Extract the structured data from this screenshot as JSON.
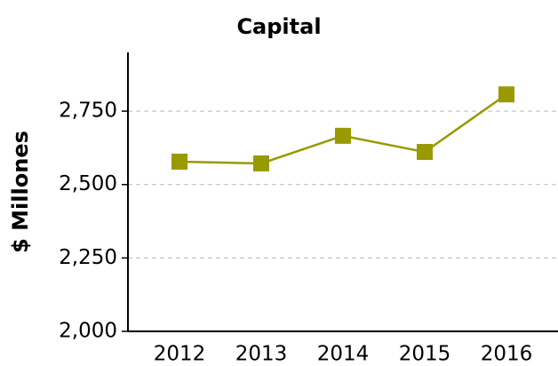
{
  "chart_data": {
    "type": "line",
    "title": "Capital",
    "y_label": "$ Millones",
    "categories": [
      "2012",
      "2013",
      "2014",
      "2015",
      "2016"
    ],
    "series": [
      {
        "name": "Capital",
        "color": "#999900",
        "values": [
          2578,
          2572,
          2666,
          2611,
          2807
        ]
      }
    ],
    "ylim": [
      2000,
      2950
    ],
    "yticks": [
      {
        "value": 2000,
        "label": "2,000"
      },
      {
        "value": 2250,
        "label": "2,250"
      },
      {
        "value": 2500,
        "label": "2,500"
      },
      {
        "value": 2750,
        "label": "2,750"
      }
    ],
    "grid": true
  }
}
